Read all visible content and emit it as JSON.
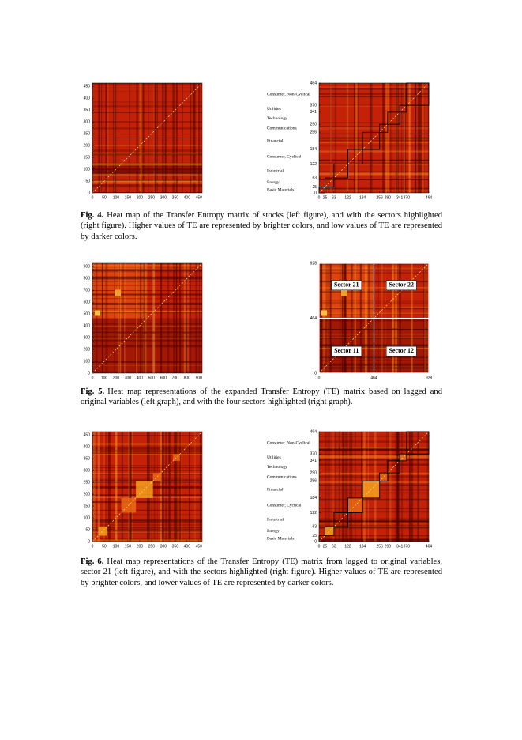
{
  "figures": [
    {
      "label": "Fig. 4.",
      "caption": "Heat map of the Transfer Entropy matrix of stocks (left figure), and with the sectors highlighted (right figure). Higher values of TE are represented by brighter colors, and low values of TE are represented by darker colors.",
      "panels": [
        {
          "range": [
            0,
            464
          ],
          "xticks": [
            0,
            50,
            100,
            150,
            200,
            250,
            300,
            350,
            400,
            450
          ],
          "yticks": [
            0,
            50,
            100,
            150,
            200,
            250,
            300,
            350,
            400,
            450
          ]
        },
        {
          "range": [
            0,
            464
          ],
          "xticks": [
            0,
            25,
            63,
            122,
            184,
            256,
            290,
            341,
            370,
            464
          ],
          "yticks": [
            0,
            25,
            63,
            122,
            184,
            256,
            290,
            341,
            370,
            464
          ],
          "sectors": [
            "Basic Materials",
            "Energy",
            "Industrial",
            "Consumer, Cyclical",
            "Financial",
            "Communications",
            "Technology",
            "Utilities",
            "Consumer, Non-Cyclical"
          ]
        }
      ]
    },
    {
      "label": "Fig. 5.",
      "caption": "Heat map representations of the expanded Transfer Entropy (TE) matrix based on lagged and original variables (left graph), and with the four sectors highlighted (right graph).",
      "panels": [
        {
          "range": [
            0,
            928
          ],
          "xticks": [
            0,
            100,
            200,
            300,
            400,
            500,
            600,
            700,
            800,
            900
          ],
          "yticks": [
            0,
            100,
            200,
            300,
            400,
            500,
            600,
            700,
            800,
            900
          ]
        },
        {
          "range": [
            0,
            928
          ],
          "xticks": [
            0,
            464,
            928
          ],
          "yticks": [
            0,
            464,
            928
          ],
          "quadrants": [
            "Sector 21",
            "Sector 22",
            "Sector 11",
            "Sector 12"
          ]
        }
      ]
    },
    {
      "label": "Fig. 6.",
      "caption": "Heat map representations of the Transfer Entropy (TE) matrix from lagged to original variables, sector 21 (left figure), and with the sectors highlighted (right figure). Higher values of TE are represented by brighter colors, and lower values of TE are represented by darker colors.",
      "panels": [
        {
          "range": [
            0,
            464
          ],
          "xticks": [
            0,
            50,
            100,
            150,
            200,
            250,
            300,
            350,
            400,
            450
          ],
          "yticks": [
            0,
            50,
            100,
            150,
            200,
            250,
            300,
            350,
            400,
            450
          ]
        },
        {
          "range": [
            0,
            464
          ],
          "xticks": [
            0,
            25,
            63,
            122,
            184,
            256,
            290,
            341,
            370,
            464
          ],
          "yticks": [
            0,
            25,
            63,
            122,
            184,
            256,
            290,
            341,
            370,
            464
          ],
          "sectors": [
            "Basic Materials",
            "Energy",
            "Industrial",
            "Consumer, Cyclical",
            "Financial",
            "Communications",
            "Technology",
            "Utilities",
            "Consumer, Non-Cyclical"
          ]
        }
      ]
    }
  ]
}
